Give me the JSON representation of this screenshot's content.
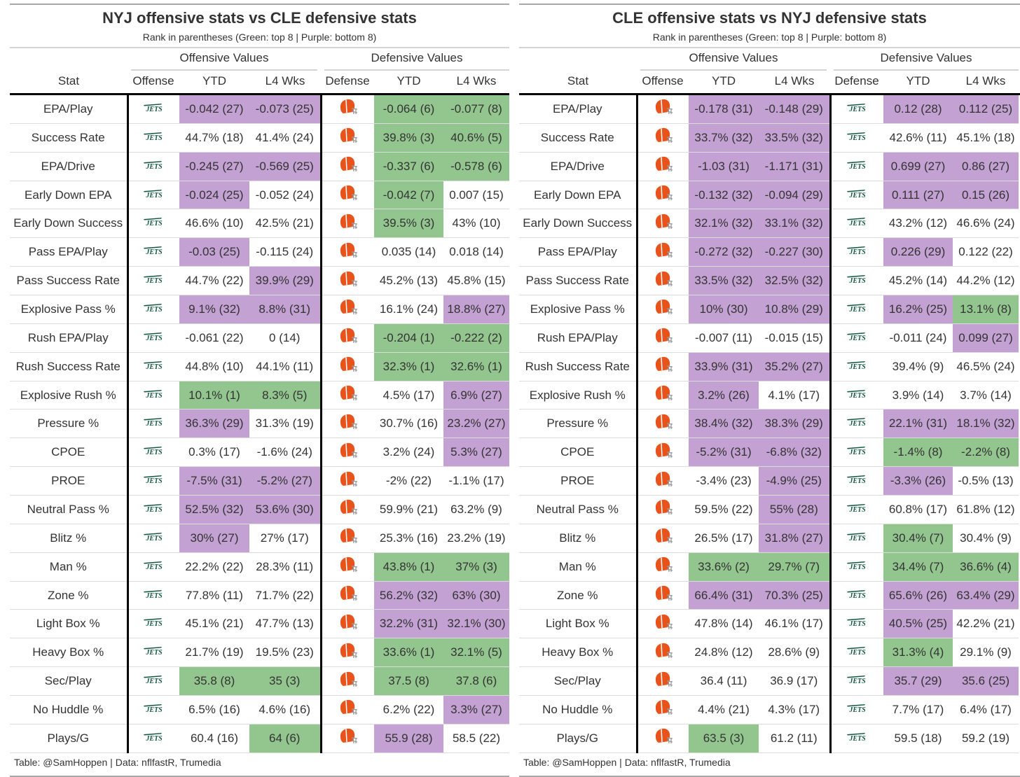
{
  "colors": {
    "green": "#93c68f",
    "purple": "#c3a1d2",
    "jets": "#125740",
    "browns": "#e8531c"
  },
  "icons": {
    "jets": "jets-logo",
    "browns": "browns-helmet-logo"
  },
  "logo_text": {
    "jets": "JETS"
  },
  "columns": {
    "stat": "Stat",
    "offense": "Offense",
    "defense": "Defense",
    "ytd": "YTD",
    "l4": "L4 Wks",
    "offensive_values": "Offensive Values",
    "defensive_values": "Defensive Values"
  },
  "tables": [
    {
      "title": "NYJ offensive stats vs CLE defensive stats",
      "subtitle": "Rank in parentheses (Green: top 8 | Purple: bottom 8)",
      "offense_logo": "jets",
      "defense_logo": "browns",
      "footer": "Table: @SamHoppen | Data: nflfastR, Trumedia",
      "rows": [
        {
          "stat": "EPA/Play",
          "values": [
            "-0.042 (27)",
            "-0.073 (25)",
            "-0.064 (6)",
            "-0.077 (8)"
          ],
          "hl": "ppgg"
        },
        {
          "stat": "Success Rate",
          "values": [
            "44.7% (18)",
            "41.4% (24)",
            "39.8% (3)",
            "40.6% (5)"
          ],
          "hl": "--gg"
        },
        {
          "stat": "EPA/Drive",
          "values": [
            "-0.245 (27)",
            "-0.569 (25)",
            "-0.337 (6)",
            "-0.578 (6)"
          ],
          "hl": "ppgg"
        },
        {
          "stat": "Early Down EPA",
          "values": [
            "-0.024 (25)",
            "-0.052 (24)",
            "-0.042 (7)",
            "0.007 (15)"
          ],
          "hl": "p-g-"
        },
        {
          "stat": "Early Down Success",
          "values": [
            "46.6% (10)",
            "42.5% (21)",
            "39.5% (3)",
            "43% (10)"
          ],
          "hl": "--g-"
        },
        {
          "stat": "Pass EPA/Play",
          "values": [
            "-0.03 (25)",
            "-0.115 (24)",
            "0.035 (14)",
            "0.018 (14)"
          ],
          "hl": "p---"
        },
        {
          "stat": "Pass Success Rate",
          "values": [
            "44.7% (22)",
            "39.9% (29)",
            "45.2% (13)",
            "45.8% (15)"
          ],
          "hl": "-p--"
        },
        {
          "stat": "Explosive Pass %",
          "values": [
            "9.1% (32)",
            "8.8% (31)",
            "16.1% (24)",
            "18.8% (27)"
          ],
          "hl": "pp-p"
        },
        {
          "stat": "Rush EPA/Play",
          "values": [
            "-0.061 (22)",
            "0 (14)",
            "-0.204 (1)",
            "-0.222 (2)"
          ],
          "hl": "--gg"
        },
        {
          "stat": "Rush Success Rate",
          "values": [
            "44.8% (10)",
            "44.1% (11)",
            "32.3% (1)",
            "32.6% (1)"
          ],
          "hl": "--gg"
        },
        {
          "stat": "Explosive Rush %",
          "values": [
            "10.1% (1)",
            "8.3% (5)",
            "4.5% (17)",
            "6.9% (27)"
          ],
          "hl": "gg-p"
        },
        {
          "stat": "Pressure %",
          "values": [
            "36.3% (29)",
            "31.3% (19)",
            "30.7% (16)",
            "23.2% (27)"
          ],
          "hl": "p--p"
        },
        {
          "stat": "CPOE",
          "values": [
            "0.3% (17)",
            "-1.6% (24)",
            "3.2% (24)",
            "5.3% (27)"
          ],
          "hl": "---p"
        },
        {
          "stat": "PROE",
          "values": [
            "-7.5% (31)",
            "-5.2% (27)",
            "-2% (22)",
            "-1.1% (17)"
          ],
          "hl": "pp--"
        },
        {
          "stat": "Neutral Pass %",
          "values": [
            "52.5% (32)",
            "53.6% (30)",
            "59.9% (21)",
            "63.2% (9)"
          ],
          "hl": "pp--"
        },
        {
          "stat": "Blitz %",
          "values": [
            "30% (27)",
            "27% (17)",
            "25.3% (16)",
            "23.2% (19)"
          ],
          "hl": "p---"
        },
        {
          "stat": "Man %",
          "values": [
            "22.2% (22)",
            "28.3% (11)",
            "43.8% (1)",
            "37% (3)"
          ],
          "hl": "--gg"
        },
        {
          "stat": "Zone %",
          "values": [
            "77.8% (11)",
            "71.7% (22)",
            "56.2% (32)",
            "63% (30)"
          ],
          "hl": "--pp"
        },
        {
          "stat": "Light Box %",
          "values": [
            "45.1% (21)",
            "47.7% (13)",
            "32.2% (31)",
            "32.1% (30)"
          ],
          "hl": "--pp"
        },
        {
          "stat": "Heavy Box %",
          "values": [
            "21.7% (19)",
            "19.5% (23)",
            "33.6% (1)",
            "32.1% (5)"
          ],
          "hl": "--gg"
        },
        {
          "stat": "Sec/Play",
          "values": [
            "35.8 (8)",
            "35 (3)",
            "37.5 (8)",
            "37.8 (6)"
          ],
          "hl": "gggg"
        },
        {
          "stat": "No Huddle %",
          "values": [
            "6.5% (16)",
            "4.6% (16)",
            "6.2% (22)",
            "3.3% (27)"
          ],
          "hl": "---p"
        },
        {
          "stat": "Plays/G",
          "values": [
            "60.4 (16)",
            "64 (6)",
            "55.9 (28)",
            "58.5 (22)"
          ],
          "hl": "-gp-"
        }
      ]
    },
    {
      "title": "CLE offensive stats vs NYJ defensive stats",
      "subtitle": "Rank in parentheses (Green: top 8 | Purple: bottom 8)",
      "offense_logo": "browns",
      "defense_logo": "jets",
      "footer": "Table: @SamHoppen | Data: nflfastR, Trumedia",
      "rows": [
        {
          "stat": "EPA/Play",
          "values": [
            "-0.178 (31)",
            "-0.148 (29)",
            "0.12 (28)",
            "0.112 (25)"
          ],
          "hl": "pppp"
        },
        {
          "stat": "Success Rate",
          "values": [
            "33.7% (32)",
            "33.5% (32)",
            "42.6% (11)",
            "45.1% (18)"
          ],
          "hl": "pp--"
        },
        {
          "stat": "EPA/Drive",
          "values": [
            "-1.03 (31)",
            "-1.171 (31)",
            "0.699 (27)",
            "0.86 (27)"
          ],
          "hl": "pppp"
        },
        {
          "stat": "Early Down EPA",
          "values": [
            "-0.132 (32)",
            "-0.094 (29)",
            "0.111 (27)",
            "0.15 (26)"
          ],
          "hl": "pppp"
        },
        {
          "stat": "Early Down Success",
          "values": [
            "32.1% (32)",
            "33.1% (32)",
            "43.2% (12)",
            "46.6% (24)"
          ],
          "hl": "pp--"
        },
        {
          "stat": "Pass EPA/Play",
          "values": [
            "-0.272 (32)",
            "-0.227 (30)",
            "0.226 (29)",
            "0.122 (22)"
          ],
          "hl": "ppp-"
        },
        {
          "stat": "Pass Success Rate",
          "values": [
            "33.5% (32)",
            "32.5% (32)",
            "45.2% (14)",
            "44.2% (12)"
          ],
          "hl": "pp--"
        },
        {
          "stat": "Explosive Pass %",
          "values": [
            "10% (30)",
            "10.8% (29)",
            "16.2% (25)",
            "13.1% (8)"
          ],
          "hl": "pppg"
        },
        {
          "stat": "Rush EPA/Play",
          "values": [
            "-0.007 (11)",
            "-0.015 (15)",
            "-0.011 (24)",
            "0.099 (27)"
          ],
          "hl": "---p"
        },
        {
          "stat": "Rush Success Rate",
          "values": [
            "33.9% (31)",
            "35.2% (27)",
            "39.4% (9)",
            "46.5% (24)"
          ],
          "hl": "pp--"
        },
        {
          "stat": "Explosive Rush %",
          "values": [
            "3.2% (26)",
            "4.1% (17)",
            "3.9% (14)",
            "3.7% (14)"
          ],
          "hl": "p---"
        },
        {
          "stat": "Pressure %",
          "values": [
            "38.4% (32)",
            "38.3% (29)",
            "22.1% (31)",
            "18.1% (32)"
          ],
          "hl": "pppp"
        },
        {
          "stat": "CPOE",
          "values": [
            "-5.2% (31)",
            "-6.8% (32)",
            "-1.4% (8)",
            "-2.2% (8)"
          ],
          "hl": "ppgg"
        },
        {
          "stat": "PROE",
          "values": [
            "-3.4% (23)",
            "-4.9% (25)",
            "-3.3% (26)",
            "-0.5% (13)"
          ],
          "hl": "-pp-"
        },
        {
          "stat": "Neutral Pass %",
          "values": [
            "59.5% (22)",
            "55% (28)",
            "60.8% (17)",
            "61.8% (12)"
          ],
          "hl": "-p--"
        },
        {
          "stat": "Blitz %",
          "values": [
            "26.5% (17)",
            "31.8% (27)",
            "30.4% (7)",
            "30.4% (9)"
          ],
          "hl": "-pg-"
        },
        {
          "stat": "Man %",
          "values": [
            "33.6% (2)",
            "29.7% (7)",
            "34.4% (7)",
            "36.6% (4)"
          ],
          "hl": "gggg"
        },
        {
          "stat": "Zone %",
          "values": [
            "66.4% (31)",
            "70.3% (25)",
            "65.6% (26)",
            "63.4% (29)"
          ],
          "hl": "pppp"
        },
        {
          "stat": "Light Box %",
          "values": [
            "47.8% (14)",
            "46.1% (17)",
            "40.5% (25)",
            "42.2% (21)"
          ],
          "hl": "--p-"
        },
        {
          "stat": "Heavy Box %",
          "values": [
            "24.8% (12)",
            "28.6% (9)",
            "31.3% (4)",
            "29.1% (9)"
          ],
          "hl": "--g-"
        },
        {
          "stat": "Sec/Play",
          "values": [
            "36.4 (11)",
            "36.9 (17)",
            "35.7 (29)",
            "35.6 (25)"
          ],
          "hl": "--pp"
        },
        {
          "stat": "No Huddle %",
          "values": [
            "4.4% (21)",
            "4.3% (17)",
            "7.7% (17)",
            "6.4% (17)"
          ],
          "hl": "----"
        },
        {
          "stat": "Plays/G",
          "values": [
            "63.5 (3)",
            "61.2 (11)",
            "59.5 (18)",
            "59.2 (19)"
          ],
          "hl": "g---"
        }
      ]
    }
  ]
}
